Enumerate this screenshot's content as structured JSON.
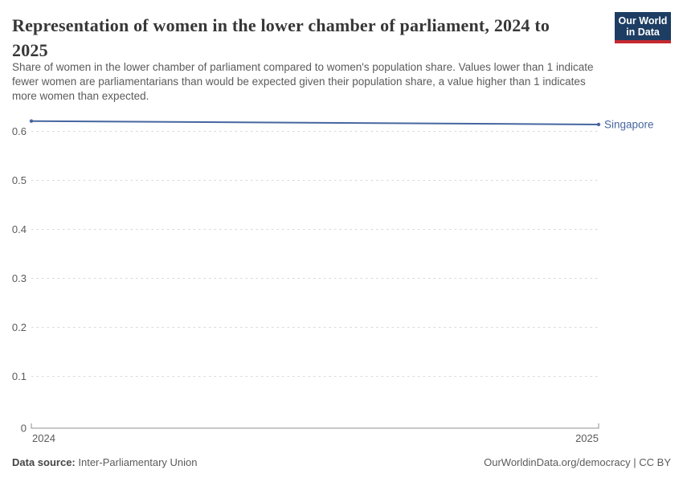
{
  "header": {
    "title_lines": [
      "Representation of women in the lower chamber of parliament, 2024 to",
      "2025"
    ],
    "subtitle_lines": [
      "Share of women in the lower chamber of parliament compared to women's population share. Values lower than 1 indicate",
      "fewer women are parliamentarians than would be expected given their population share, a value higher than 1 indicates",
      "more women than expected."
    ],
    "logo": {
      "line1": "Our World",
      "line2": "in Data"
    }
  },
  "chart_data": {
    "type": "line",
    "title": "Representation of women in the lower chamber of parliament, 2024 to 2025",
    "x": [
      2024,
      2025
    ],
    "x_tick_labels": [
      "2024",
      "2025"
    ],
    "series": [
      {
        "name": "Singapore",
        "values": [
          0.621,
          0.614
        ],
        "color": "#4766a0"
      }
    ],
    "yticks": [
      {
        "v": 0,
        "label": "0"
      },
      {
        "v": 0.1,
        "label": "0.1"
      },
      {
        "v": 0.2,
        "label": "0.2"
      },
      {
        "v": 0.3,
        "label": "0.3"
      },
      {
        "v": 0.4,
        "label": "0.4"
      },
      {
        "v": 0.5,
        "label": "0.5"
      },
      {
        "v": 0.6,
        "label": "0.6"
      }
    ],
    "ylim": [
      0,
      0.64
    ],
    "xlabel": "",
    "ylabel": "",
    "grid": "horizontal-dashed",
    "legend": "line-end-label"
  },
  "footer": {
    "source_label": "Data source:",
    "source_value": "Inter-Parliamentary Union",
    "attribution": "OurWorldinData.org/democracy | CC BY"
  },
  "colors": {
    "line": "#4766a0",
    "entity_label": "#4766a0",
    "logo_bg": "#1d3d63",
    "logo_bar": "#c5282f",
    "title_text": "#373737",
    "body_text": "#5b5b5b",
    "grid": "#d8d8d8",
    "axis": "#8f8f8f"
  }
}
